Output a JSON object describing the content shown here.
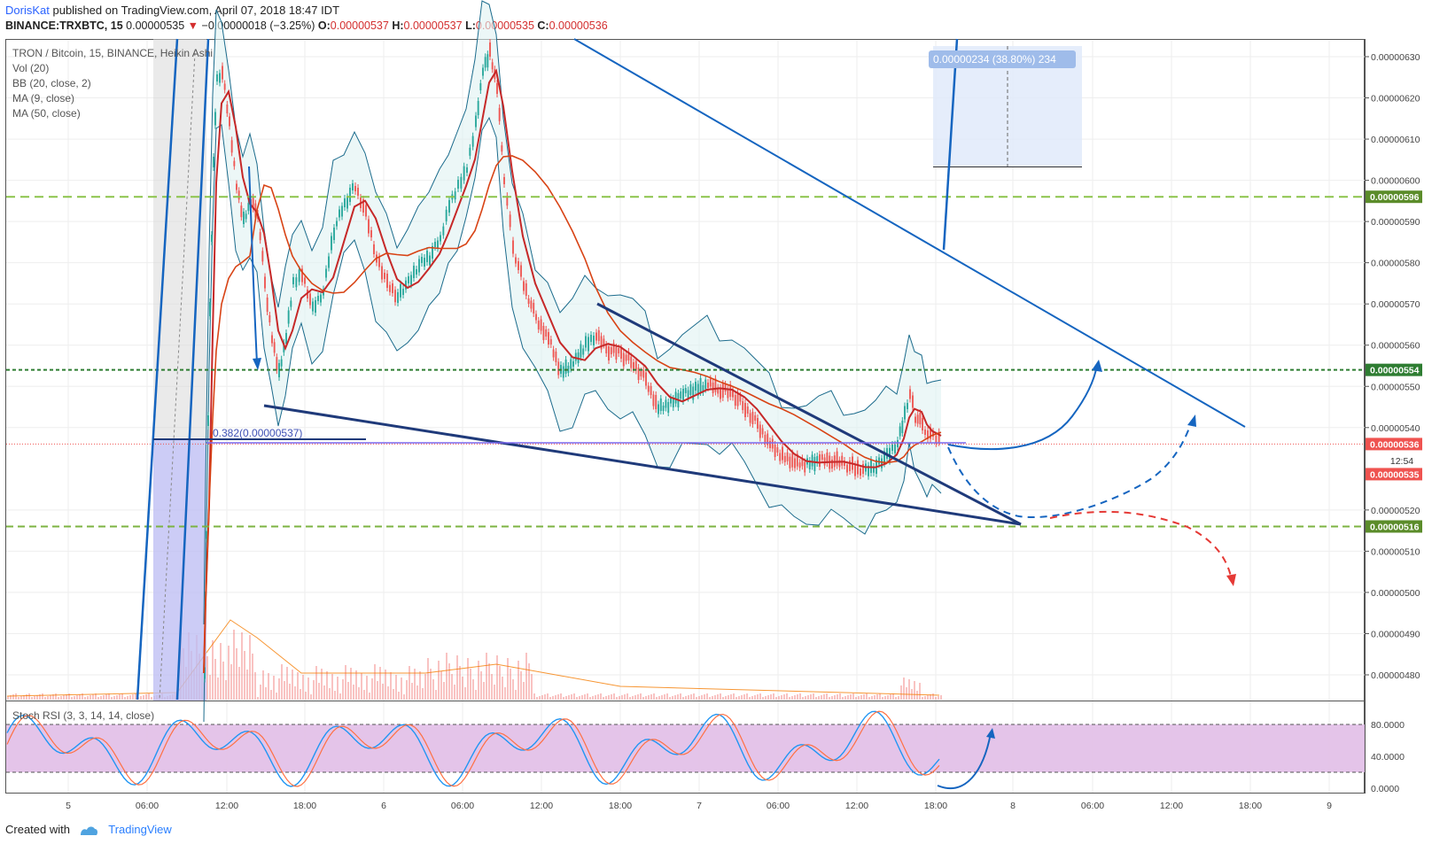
{
  "header": {
    "author": "DorisKat",
    "published": "published on TradingView.com, April 07, 2018 18:47 IDT",
    "symbol": "BINANCE:TRXBTC, 15",
    "last": "0.00000535",
    "change": "−0.00000018 (−3.25%)",
    "o_label": "O:",
    "o": "0.00000537",
    "h_label": "H:",
    "h": "0.00000537",
    "l_label": "L:",
    "l": "0.00000535",
    "c_label": "C:",
    "c": "0.00000536"
  },
  "legend": {
    "title": "TRON / Bitcoin, 15, BINANCE, Heikin Ashi",
    "vol": "Vol (20)",
    "bb": "BB (20, close, 2)",
    "ma9": "MA (9, close)",
    "ma50": "MA (50, close)",
    "stoch": "Stoch RSI (3, 3, 14, 14, close)"
  },
  "measure_label": "0.00000234 (38.80%) 234",
  "fib_label": "0.382(0.00000537)",
  "countdown": "12:54",
  "footer": {
    "created_with": "Created with",
    "brand": "TradingView"
  },
  "colors": {
    "up": "#26a69a",
    "down": "#ef5350",
    "trend": "#1f4e9c",
    "bbfill": "#e0f2f1",
    "stochfill": "#e1bee7",
    "green_dash": "#7cb342"
  },
  "chart_data": {
    "type": "candlestick",
    "ylim": [
      4.74e-06,
      6.36e-06
    ],
    "y_ticks": [
      "0.00000630",
      "0.00000620",
      "0.00000610",
      "0.00000600",
      "0.00000590",
      "0.00000580",
      "0.00000570",
      "0.00000560",
      "0.00000550",
      "0.00000540",
      "0.00000520",
      "0.00000510",
      "0.00000500",
      "0.00000490",
      "0.00000480"
    ],
    "price_tags": [
      {
        "value": "0.00000596",
        "y": 5.96e-06
      },
      {
        "value": "0.00000554",
        "y": 5.54e-06
      },
      {
        "value": "0.00000536",
        "y": 5.36e-06
      },
      {
        "value": "0.00000535",
        "y": 5.35e-06
      },
      {
        "value": "0.00000516",
        "y": 5.16e-06
      }
    ],
    "x_ticks": [
      "5",
      "06:00",
      "12:00",
      "18:00",
      "6",
      "06:00",
      "12:00",
      "18:00",
      "7",
      "06:00",
      "12:00",
      "18:00",
      "8",
      "06:00",
      "12:00",
      "18:00",
      "9"
    ],
    "stoch_ticks": [
      "80.0000",
      "40.0000",
      "0.0000"
    ],
    "stoch_band": [
      20,
      80
    ]
  }
}
